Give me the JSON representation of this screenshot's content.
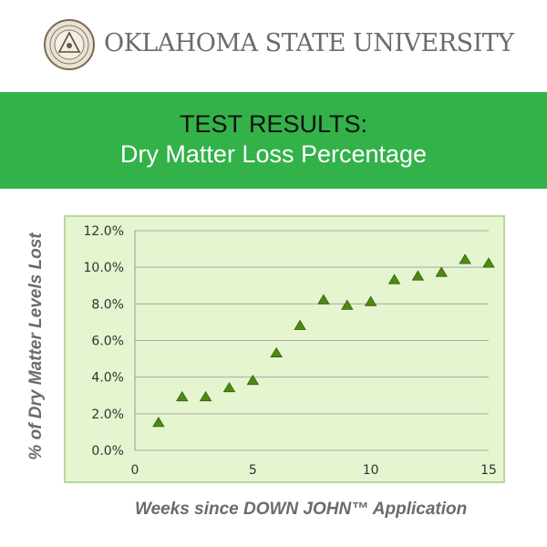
{
  "header": {
    "university_name": "OKLAHOMA STATE UNIVERSITY",
    "seal_icon": "university-seal-icon"
  },
  "banner": {
    "line1": "TEST RESULTS:",
    "line2": "Dry Matter Loss Percentage",
    "color": "#33b249"
  },
  "chart_data": {
    "type": "scatter",
    "marker": "triangle",
    "xlabel": "Weeks since DOWN JOHN™ Application",
    "ylabel": "% of Dry Matter Levels Lost",
    "xlim": [
      0,
      15
    ],
    "ylim": [
      0,
      12
    ],
    "x_ticks": [
      "0",
      "5",
      "10",
      "15"
    ],
    "y_ticks": [
      "0.0%",
      "2.0%",
      "4.0%",
      "6.0%",
      "8.0%",
      "10.0%",
      "12.0%"
    ],
    "grid": "horizontal",
    "series": [
      {
        "x": [
          1,
          2,
          3,
          4,
          5,
          6,
          7,
          8,
          9,
          10,
          11,
          12,
          13,
          14,
          15
        ],
        "y": [
          1.5,
          2.9,
          2.9,
          3.4,
          3.8,
          5.3,
          6.8,
          8.2,
          7.9,
          8.1,
          9.3,
          9.5,
          9.7,
          10.4,
          10.2
        ]
      }
    ],
    "colors": {
      "plot_bg": "#e4f5cf",
      "border": "#b9d99a",
      "marker": "#4e8a12",
      "grid": "#a9a9a9"
    }
  }
}
